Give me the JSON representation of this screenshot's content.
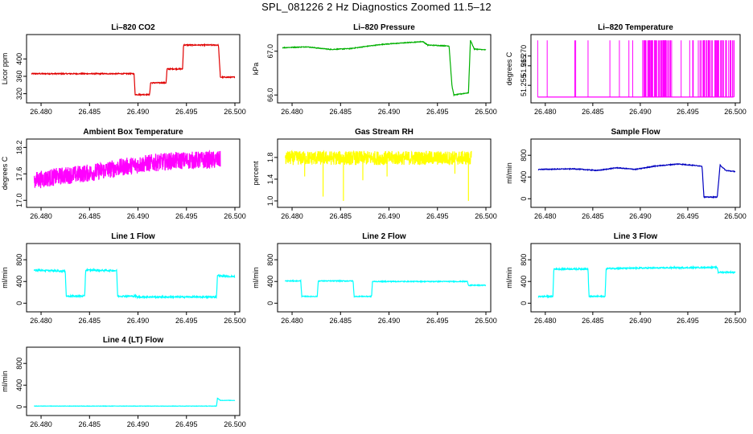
{
  "page_title": "SPL_081226  2 Hz Diagnostics Zoomed 11.5–12",
  "chart_data": [
    {
      "type": "line",
      "title": "Li–820 CO2",
      "ylabel": "Licor ppm",
      "color": "#e00000",
      "xlim": [
        26.479,
        26.5
      ],
      "ylim": [
        310,
        445
      ],
      "xticks": [
        "26.480",
        "26.485",
        "26.490",
        "26.495",
        "26.500"
      ],
      "xtick_values": [
        26.48,
        26.485,
        26.49,
        26.495,
        26.5
      ],
      "yticks": [
        "320",
        "360",
        "400"
      ],
      "ytick_values": [
        320,
        360,
        400
      ],
      "x": [
        26.479,
        26.4896,
        26.4897,
        26.4912,
        26.4913,
        26.4929,
        26.493,
        26.4946,
        26.4947,
        26.4983,
        26.4985,
        26.5
      ],
      "y": [
        366,
        366,
        318,
        318,
        345,
        345,
        377,
        377,
        432,
        432,
        358,
        358
      ],
      "noise": 1.2
    },
    {
      "type": "line",
      "title": "Li–820 Pressure",
      "ylabel": "kPa",
      "color": "#00b000",
      "xlim": [
        26.479,
        26.5
      ],
      "ylim": [
        65.93,
        67.27
      ],
      "xticks": [
        "26.480",
        "26.485",
        "26.490",
        "26.495",
        "26.500"
      ],
      "xtick_values": [
        26.48,
        26.485,
        26.49,
        26.495,
        26.5
      ],
      "yticks": [
        "66.0",
        "67.0"
      ],
      "ytick_values": [
        66.0,
        67.0
      ],
      "x": [
        26.479,
        26.4815,
        26.484,
        26.486,
        26.488,
        26.4895,
        26.4935,
        26.494,
        26.4962,
        26.4965,
        26.4967,
        26.4982,
        26.4984,
        26.4988,
        26.5
      ],
      "y": [
        67.08,
        67.1,
        67.04,
        67.06,
        67.12,
        67.16,
        67.22,
        67.14,
        67.12,
        66.2,
        66.0,
        66.05,
        67.25,
        67.05,
        67.03
      ],
      "noise": 0.008
    },
    {
      "type": "spikes",
      "title": "Li–820 Temperature",
      "ylabel": "degrees C",
      "color": "#ff00ff",
      "xlim": [
        26.479,
        26.5
      ],
      "ylim": [
        51.2485,
        51.2785
      ],
      "xticks": [
        "26.480",
        "26.485",
        "26.490",
        "26.495",
        "26.500"
      ],
      "xtick_values": [
        26.48,
        26.485,
        26.49,
        26.495,
        26.5
      ],
      "yticks": [
        "51.255",
        "51.265",
        "51.270"
      ],
      "ytick_values": [
        51.255,
        51.265,
        51.27
      ],
      "base": 51.249,
      "top": 51.278,
      "spikes": [
        26.4792,
        26.4802,
        26.4831,
        26.4832,
        26.4845,
        26.4868,
        26.4878,
        26.4888,
        26.4892,
        26.4906,
        26.4915,
        26.4924,
        26.4933,
        26.4943,
        26.4952,
        26.4964,
        26.4972,
        26.4981,
        26.499,
        26.4997
      ],
      "dense_ranges": [
        [
          26.4902,
          26.4932
        ],
        [
          26.4955,
          26.4999
        ]
      ]
    },
    {
      "type": "noisy_band",
      "title": "Ambient Box Temperature",
      "ylabel": "degrees C",
      "color": "#ff00ff",
      "xlim": [
        26.479,
        26.5
      ],
      "ylim": [
        16.95,
        18.28
      ],
      "xticks": [
        "26.480",
        "26.485",
        "26.490",
        "26.495",
        "26.500"
      ],
      "xtick_values": [
        26.48,
        26.485,
        26.49,
        26.495,
        26.5
      ],
      "yticks": [
        "17.0",
        "17.6",
        "18.2"
      ],
      "ytick_values": [
        17.0,
        17.6,
        18.2
      ],
      "x": [
        26.4793,
        26.482,
        26.485,
        26.488,
        26.491,
        26.494,
        26.4985
      ],
      "y": [
        17.45,
        17.55,
        17.62,
        17.74,
        17.84,
        17.9,
        17.92
      ],
      "amplitude": 0.2
    },
    {
      "type": "noisy_band",
      "title": "Gas Stream RH",
      "ylabel": "percent",
      "color": "#ffff00",
      "xlim": [
        26.479,
        26.5
      ],
      "ylim": [
        0.97,
        2.05
      ],
      "xticks": [
        "26.480",
        "26.485",
        "26.490",
        "26.495",
        "26.500"
      ],
      "xtick_values": [
        26.48,
        26.485,
        26.49,
        26.495,
        26.5
      ],
      "yticks": [
        "1.0",
        "1.4",
        "1.8"
      ],
      "ytick_values": [
        1.0,
        1.4,
        1.8
      ],
      "x": [
        26.4793,
        26.4985
      ],
      "y": [
        1.79,
        1.79
      ],
      "amplitude": 0.13,
      "dips": [
        [
          26.4813,
          1.45
        ],
        [
          26.4832,
          1.08
        ],
        [
          26.4853,
          1.0
        ],
        [
          26.4873,
          1.38
        ],
        [
          26.4898,
          1.45
        ],
        [
          26.4968,
          1.5
        ],
        [
          26.4982,
          1.0
        ]
      ]
    },
    {
      "type": "line",
      "title": "Sample Flow",
      "ylabel": "ml/min",
      "color": "#0000c0",
      "xlim": [
        26.479,
        26.5
      ],
      "ylim": [
        -70,
        1010
      ],
      "xticks": [
        "26.480",
        "26.485",
        "26.490",
        "26.495",
        "26.500"
      ],
      "xtick_values": [
        26.48,
        26.485,
        26.49,
        26.495,
        26.5
      ],
      "yticks": [
        "0",
        "400",
        "800"
      ],
      "ytick_values": [
        0,
        400,
        800
      ],
      "x": [
        26.4793,
        26.483,
        26.4855,
        26.4875,
        26.4895,
        26.4915,
        26.494,
        26.4965,
        26.4967,
        26.4981,
        26.4984,
        26.499,
        26.5
      ],
      "y": [
        540,
        550,
        520,
        570,
        540,
        600,
        640,
        600,
        30,
        30,
        620,
        520,
        500
      ],
      "noise": 7
    },
    {
      "type": "line",
      "title": "Line 1 Flow",
      "ylabel": "ml/min",
      "color": "#00ffff",
      "xlim": [
        26.479,
        26.5
      ],
      "ylim": [
        -70,
        1010
      ],
      "xticks": [
        "26.480",
        "26.485",
        "26.490",
        "26.495",
        "26.500"
      ],
      "xtick_values": [
        26.48,
        26.485,
        26.49,
        26.495,
        26.5
      ],
      "yticks": [
        "0",
        "400",
        "800"
      ],
      "ytick_values": [
        0,
        400,
        800
      ],
      "x": [
        26.4793,
        26.4825,
        26.4826,
        26.4845,
        26.4846,
        26.4878,
        26.4879,
        26.4898,
        26.4899,
        26.4981,
        26.4982,
        26.4985,
        26.5
      ],
      "y": [
        610,
        590,
        130,
        130,
        610,
        600,
        130,
        130,
        115,
        115,
        520,
        500,
        490
      ],
      "noise": 14
    },
    {
      "type": "line",
      "title": "Line 2 Flow",
      "ylabel": "ml/min",
      "color": "#00ffff",
      "xlim": [
        26.479,
        26.5
      ],
      "ylim": [
        -70,
        1010
      ],
      "xticks": [
        "26.480",
        "26.485",
        "26.490",
        "26.495",
        "26.500"
      ],
      "xtick_values": [
        26.48,
        26.485,
        26.49,
        26.495,
        26.5
      ],
      "yticks": [
        "0",
        "400",
        "800"
      ],
      "ytick_values": [
        0,
        400,
        800
      ],
      "x": [
        26.4793,
        26.4809,
        26.481,
        26.4826,
        26.4827,
        26.4863,
        26.4864,
        26.4882,
        26.4883,
        26.4981,
        26.4982,
        26.5
      ],
      "y": [
        410,
        410,
        125,
        125,
        410,
        410,
        125,
        125,
        400,
        400,
        330,
        330
      ],
      "noise": 8
    },
    {
      "type": "line",
      "title": "Line 3 Flow",
      "ylabel": "ml/min",
      "color": "#00ffff",
      "xlim": [
        26.479,
        26.5
      ],
      "ylim": [
        -70,
        1010
      ],
      "xticks": [
        "26.480",
        "26.485",
        "26.490",
        "26.495",
        "26.500"
      ],
      "xtick_values": [
        26.48,
        26.485,
        26.49,
        26.495,
        26.5
      ],
      "yticks": [
        "0",
        "400",
        "800"
      ],
      "ytick_values": [
        0,
        400,
        800
      ],
      "x": [
        26.4793,
        26.4808,
        26.4809,
        26.4845,
        26.4846,
        26.4863,
        26.4864,
        26.4981,
        26.4982,
        26.5
      ],
      "y": [
        125,
        125,
        630,
        630,
        125,
        125,
        640,
        660,
        570,
        570
      ],
      "noise": 12
    },
    {
      "type": "line",
      "title": "Line 4 (LT) Flow",
      "ylabel": "ml/min",
      "color": "#00ffff",
      "xlim": [
        26.479,
        26.5
      ],
      "ylim": [
        -70,
        1010
      ],
      "xticks": [
        "26.480",
        "26.485",
        "26.490",
        "26.495",
        "26.500"
      ],
      "xtick_values": [
        26.48,
        26.485,
        26.49,
        26.495,
        26.5
      ],
      "yticks": [
        "0",
        "400",
        "800"
      ],
      "ytick_values": [
        0,
        400,
        800
      ],
      "x": [
        26.4793,
        26.4981,
        26.4982,
        26.4985,
        26.5
      ],
      "y": [
        15,
        15,
        160,
        120,
        120
      ],
      "noise": 3
    }
  ]
}
